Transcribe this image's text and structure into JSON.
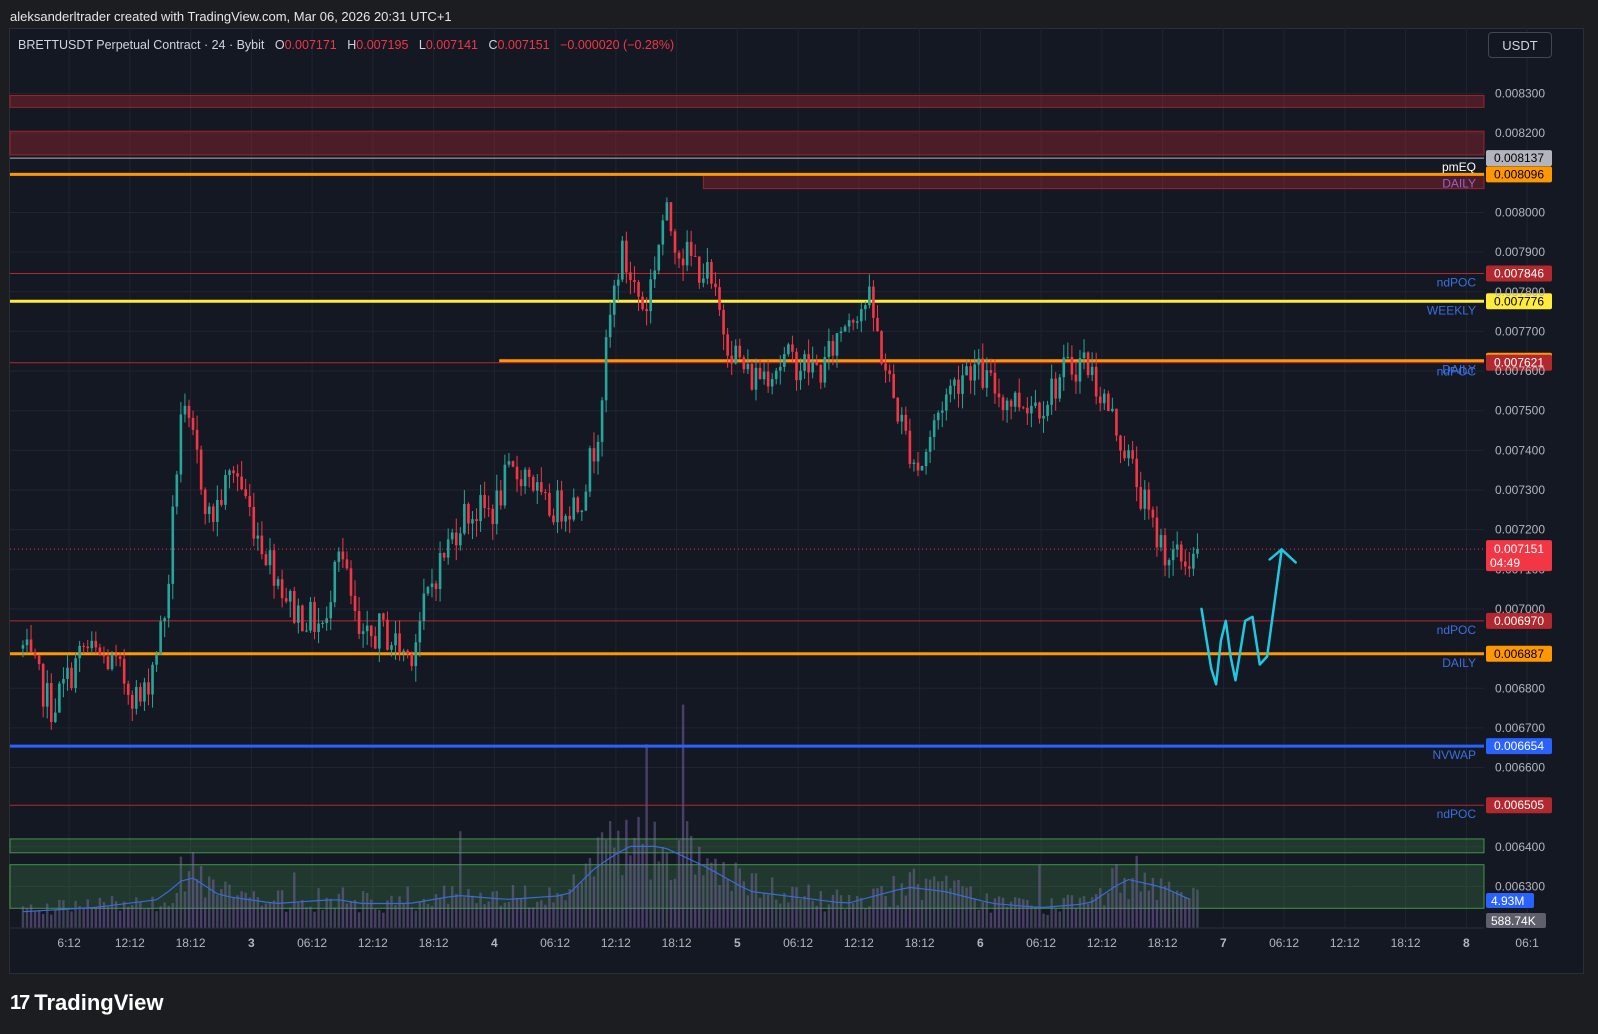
{
  "header": {
    "credit": "aleksanderltrader created with TradingView.com, Mar 06, 2026 20:31 UTC+1"
  },
  "symbol": {
    "name": "BRETTUSDT Perpetual Contract · 24 · Bybit",
    "open_label": "O",
    "open": "0.007171",
    "high_label": "H",
    "high": "0.007195",
    "low_label": "L",
    "low": "0.007141",
    "close_label": "C",
    "close": "0.007151",
    "change": "−0.000020 (−0.28%)"
  },
  "currency_button": "USDT",
  "branding": {
    "mark": "17",
    "name": "TradingView"
  },
  "colors": {
    "bullish": "#26a69a",
    "bearish": "#f23645",
    "daily": "#ff9800",
    "weekly": "#ffeb3b",
    "nvwap": "#2962ff",
    "ndpoc": "#b2282e",
    "pmeq": "#b2b5be",
    "supply_zone": "#b2282e",
    "demand_zone": "#4caf50",
    "projection": "#1ec8e0"
  },
  "chart_data": {
    "type": "candlestick",
    "title": "",
    "xlabel": "",
    "ylabel": "",
    "y_axis_ticks": [
      "0.008300",
      "0.008200",
      "0.008000",
      "0.007900",
      "0.007800",
      "0.007700",
      "0.007600",
      "0.007500",
      "0.007400",
      "0.007300",
      "0.007200",
      "0.007100",
      "0.007000",
      "0.006800",
      "0.006700",
      "0.006600",
      "0.006400",
      "0.006300"
    ],
    "y_range": [
      0.006245,
      0.008395
    ],
    "x_axis_ticks": [
      {
        "label": "6:12",
        "day": 2.0
      },
      {
        "label": "12:12",
        "day": 2.25
      },
      {
        "label": "18:12",
        "day": 2.5
      },
      {
        "label": "3",
        "day": 2.75
      },
      {
        "label": "06:12",
        "day": 3.0
      },
      {
        "label": "12:12",
        "day": 3.25
      },
      {
        "label": "18:12",
        "day": 3.5
      },
      {
        "label": "4",
        "day": 3.75
      },
      {
        "label": "06:12",
        "day": 4.0
      },
      {
        "label": "12:12",
        "day": 4.25
      },
      {
        "label": "18:12",
        "day": 4.5
      },
      {
        "label": "5",
        "day": 4.75
      },
      {
        "label": "06:12",
        "day": 5.0
      },
      {
        "label": "12:12",
        "day": 5.25
      },
      {
        "label": "18:12",
        "day": 5.5
      },
      {
        "label": "6",
        "day": 5.75
      },
      {
        "label": "06:12",
        "day": 6.0
      },
      {
        "label": "12:12",
        "day": 6.25
      },
      {
        "label": "18:12",
        "day": 6.5
      },
      {
        "label": "7",
        "day": 6.75
      },
      {
        "label": "06:12",
        "day": 7.0
      },
      {
        "label": "12:12",
        "day": 7.25
      },
      {
        "label": "18:12",
        "day": 7.5
      },
      {
        "label": "8",
        "day": 7.75
      },
      {
        "label": "06:1",
        "day": 8.0
      }
    ],
    "levels": [
      {
        "name": "pmEQ",
        "price": 0.008137,
        "price_label": "0.008137",
        "color": "#b2b5be",
        "style": "thin"
      },
      {
        "name": "DAILY",
        "price": 0.008096,
        "price_label": "0.008096",
        "color": "#ff9800",
        "style": "thick"
      },
      {
        "name": "ndPOC",
        "price": 0.007846,
        "price_label": "0.007846",
        "color": "#b2282e",
        "style": "thin"
      },
      {
        "name": "WEEKLY",
        "price": 0.007776,
        "price_label": "0.007776",
        "color": "#ffeb3b",
        "style": "thick"
      },
      {
        "name": "DAILY",
        "price": 0.007626,
        "price_label": "0.007626",
        "color": "#ff9800",
        "style": "thick",
        "start_day": 3.77
      },
      {
        "name": "ndPOC",
        "price": 0.007621,
        "price_label": "0.007621",
        "color": "#b2282e",
        "style": "thin"
      },
      {
        "name": "ndPOC",
        "price": 0.00697,
        "price_label": "0.006970",
        "color": "#b2282e",
        "style": "thin"
      },
      {
        "name": "DAILY",
        "price": 0.006887,
        "price_label": "0.006887",
        "color": "#ff9800",
        "style": "thick"
      },
      {
        "name": "NVWAP",
        "price": 0.006654,
        "price_label": "0.006654",
        "color": "#2962ff",
        "style": "thick"
      },
      {
        "name": "ndPOC",
        "price": 0.006505,
        "price_label": "0.006505",
        "color": "#b2282e",
        "style": "thin"
      }
    ],
    "zones": [
      {
        "kind": "supply",
        "from": 0.008265,
        "to": 0.008295
      },
      {
        "kind": "supply",
        "from": 0.008145,
        "to": 0.008205
      },
      {
        "kind": "supply",
        "from": 0.00806,
        "to": 0.008096,
        "start_day": 4.61
      },
      {
        "kind": "demand",
        "from": 0.006385,
        "to": 0.00642
      },
      {
        "kind": "demand",
        "from": 0.006245,
        "to": 0.006355
      }
    ],
    "last_price": {
      "price": 0.007151,
      "price_label": "0.007151",
      "countdown": "04:49"
    },
    "volume_labels": {
      "moving_average": "4.93M",
      "current": "588.74K"
    },
    "candle_interval_minutes": 24,
    "candle_anchors": [
      [
        1.81,
        0.0069
      ],
      [
        1.93,
        0.00675
      ],
      [
        2.06,
        0.0069
      ],
      [
        2.18,
        0.00686
      ],
      [
        2.3,
        0.00676
      ],
      [
        2.4,
        0.007
      ],
      [
        2.46,
        0.0075
      ],
      [
        2.52,
        0.0074
      ],
      [
        2.58,
        0.00722
      ],
      [
        2.68,
        0.00736
      ],
      [
        2.77,
        0.0072
      ],
      [
        2.92,
        0.007
      ],
      [
        3.06,
        0.00695
      ],
      [
        3.1,
        0.0072
      ],
      [
        3.2,
        0.0069
      ],
      [
        3.28,
        0.00695
      ],
      [
        3.4,
        0.00688
      ],
      [
        3.5,
        0.00708
      ],
      [
        3.62,
        0.00724
      ],
      [
        3.75,
        0.00725
      ],
      [
        3.8,
        0.00733
      ],
      [
        3.89,
        0.00735
      ],
      [
        3.95,
        0.00725
      ],
      [
        4.1,
        0.00727
      ],
      [
        4.17,
        0.00743
      ],
      [
        4.23,
        0.00775
      ],
      [
        4.27,
        0.0079
      ],
      [
        4.37,
        0.00775
      ],
      [
        4.45,
        0.008
      ],
      [
        4.52,
        0.0079
      ],
      [
        4.62,
        0.00785
      ],
      [
        4.71,
        0.00768
      ],
      [
        4.8,
        0.00758
      ],
      [
        4.95,
        0.00763
      ],
      [
        5.1,
        0.0076
      ],
      [
        5.2,
        0.00774
      ],
      [
        5.29,
        0.00778
      ],
      [
        5.37,
        0.00758
      ],
      [
        5.45,
        0.00742
      ],
      [
        5.5,
        0.00735
      ],
      [
        5.59,
        0.00752
      ],
      [
        5.7,
        0.00762
      ],
      [
        5.85,
        0.00753
      ],
      [
        6.0,
        0.00752
      ],
      [
        6.1,
        0.0076
      ],
      [
        6.18,
        0.00763
      ],
      [
        6.28,
        0.0075
      ],
      [
        6.36,
        0.00738
      ],
      [
        6.46,
        0.0072
      ],
      [
        6.53,
        0.00713
      ],
      [
        6.6,
        0.00712
      ],
      [
        6.65,
        0.007151
      ]
    ],
    "volume_anchors": [
      [
        1.81,
        0.08
      ],
      [
        2.1,
        0.1
      ],
      [
        2.37,
        0.14
      ],
      [
        2.49,
        0.26
      ],
      [
        2.62,
        0.16
      ],
      [
        2.85,
        0.12
      ],
      [
        3.1,
        0.14
      ],
      [
        3.2,
        0.12
      ],
      [
        3.4,
        0.12
      ],
      [
        3.6,
        0.16
      ],
      [
        3.8,
        0.14
      ],
      [
        4.05,
        0.16
      ],
      [
        4.17,
        0.3
      ],
      [
        4.3,
        0.4
      ],
      [
        4.44,
        0.4
      ],
      [
        4.62,
        0.3
      ],
      [
        4.8,
        0.18
      ],
      [
        5.0,
        0.15
      ],
      [
        5.2,
        0.12
      ],
      [
        5.45,
        0.2
      ],
      [
        5.6,
        0.18
      ],
      [
        5.8,
        0.12
      ],
      [
        6.0,
        0.1
      ],
      [
        6.2,
        0.12
      ],
      [
        6.35,
        0.24
      ],
      [
        6.5,
        0.2
      ],
      [
        6.65,
        0.12
      ]
    ]
  }
}
